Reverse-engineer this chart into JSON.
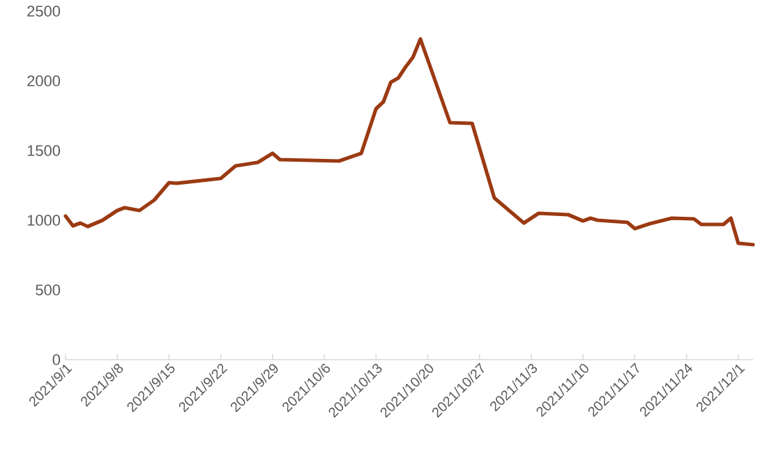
{
  "chart_data": {
    "type": "line",
    "x": [
      "2021-09-01",
      "2021-09-02",
      "2021-09-03",
      "2021-09-04",
      "2021-09-06",
      "2021-09-08",
      "2021-09-09",
      "2021-09-11",
      "2021-09-13",
      "2021-09-15",
      "2021-09-16",
      "2021-09-22",
      "2021-09-24",
      "2021-09-27",
      "2021-09-29",
      "2021-09-30",
      "2021-10-08",
      "2021-10-11",
      "2021-10-13",
      "2021-10-14",
      "2021-10-15",
      "2021-10-16",
      "2021-10-17",
      "2021-10-18",
      "2021-10-19",
      "2021-10-23",
      "2021-10-26",
      "2021-10-29",
      "2021-11-02",
      "2021-11-04",
      "2021-11-08",
      "2021-11-10",
      "2021-11-11",
      "2021-11-12",
      "2021-11-16",
      "2021-11-17",
      "2021-11-19",
      "2021-11-22",
      "2021-11-25",
      "2021-11-26",
      "2021-11-29",
      "2021-11-30",
      "2021-12-01",
      "2021-12-03"
    ],
    "series": [
      {
        "color": "#9b3a12",
        "values": [
          1030,
          960,
          980,
          955,
          1000,
          1070,
          1090,
          1070,
          1145,
          1270,
          1265,
          1300,
          1390,
          1415,
          1480,
          1435,
          1425,
          1480,
          1800,
          1850,
          1990,
          2020,
          2100,
          2170,
          2300,
          1700,
          1695,
          1160,
          980,
          1050,
          1040,
          995,
          1015,
          1000,
          985,
          940,
          975,
          1015,
          1010,
          970,
          970,
          1015,
          835,
          825
        ]
      }
    ],
    "xlim": [
      "2021-09-01",
      "2021-12-03"
    ],
    "xticks": [
      {
        "value": "2021-09-01",
        "label": "2021/9/1"
      },
      {
        "value": "2021-09-08",
        "label": "2021/9/8"
      },
      {
        "value": "2021-09-15",
        "label": "2021/9/15"
      },
      {
        "value": "2021-09-22",
        "label": "2021/9/22"
      },
      {
        "value": "2021-09-29",
        "label": "2021/9/29"
      },
      {
        "value": "2021-10-06",
        "label": "2021/10/6"
      },
      {
        "value": "2021-10-13",
        "label": "2021/10/13"
      },
      {
        "value": "2021-10-20",
        "label": "2021/10/20"
      },
      {
        "value": "2021-10-27",
        "label": "2021/10/27"
      },
      {
        "value": "2021-11-03",
        "label": "2021/11/3"
      },
      {
        "value": "2021-11-10",
        "label": "2021/11/10"
      },
      {
        "value": "2021-11-17",
        "label": "2021/11/17"
      },
      {
        "value": "2021-11-24",
        "label": "2021/11/24"
      },
      {
        "value": "2021-12-01",
        "label": "2021/12/1"
      }
    ],
    "ylim": [
      0,
      2500
    ],
    "yticks": [
      0,
      500,
      1000,
      1500,
      2000,
      2500
    ],
    "grid": false,
    "legend": false,
    "marker": "none",
    "line_style": "solid"
  }
}
